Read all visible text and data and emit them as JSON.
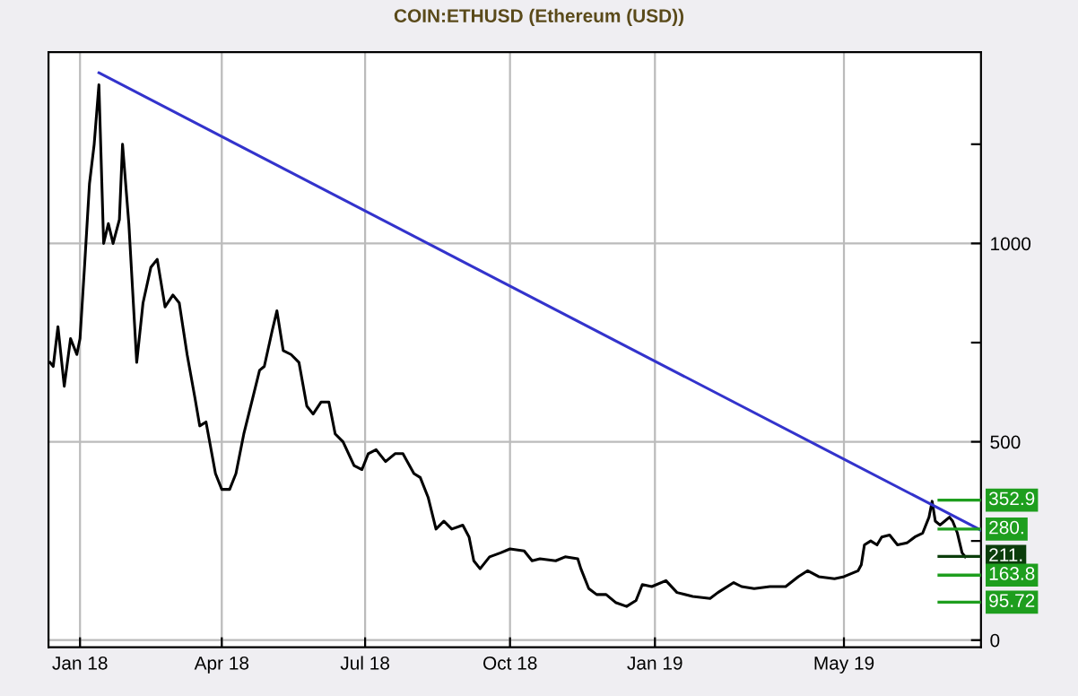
{
  "chart_data": {
    "type": "line",
    "title": "COIN:ETHUSD (Ethereum (USD))",
    "series": [
      {
        "color": "#000000",
        "x": [
          "2017-12-13",
          "2017-12-15",
          "2017-12-18",
          "2017-12-22",
          "2017-12-26",
          "2017-12-30",
          "2018-01-01",
          "2018-01-04",
          "2018-01-07",
          "2018-01-10",
          "2018-01-13",
          "2018-01-16",
          "2018-01-19",
          "2018-01-22",
          "2018-01-26",
          "2018-01-28",
          "2018-02-01",
          "2018-02-06",
          "2018-02-10",
          "2018-02-15",
          "2018-02-19",
          "2018-02-24",
          "2018-03-01",
          "2018-03-05",
          "2018-03-10",
          "2018-03-15",
          "2018-03-18",
          "2018-03-22",
          "2018-03-28",
          "2018-04-01",
          "2018-04-06",
          "2018-04-10",
          "2018-04-15",
          "2018-04-20",
          "2018-04-25",
          "2018-04-28",
          "2018-05-03",
          "2018-05-06",
          "2018-05-10",
          "2018-05-15",
          "2018-05-20",
          "2018-05-25",
          "2018-05-29",
          "2018-06-03",
          "2018-06-08",
          "2018-06-12",
          "2018-06-17",
          "2018-06-24",
          "2018-06-29",
          "2018-07-03",
          "2018-07-08",
          "2018-07-14",
          "2018-07-20",
          "2018-07-25",
          "2018-08-01",
          "2018-08-05",
          "2018-08-10",
          "2018-08-15",
          "2018-08-20",
          "2018-08-25",
          "2018-09-01",
          "2018-09-05",
          "2018-09-08",
          "2018-09-12",
          "2018-09-18",
          "2018-09-25",
          "2018-10-01",
          "2018-10-10",
          "2018-10-15",
          "2018-10-20",
          "2018-10-30",
          "2018-11-05",
          "2018-11-13",
          "2018-11-15",
          "2018-11-20",
          "2018-11-25",
          "2018-12-01",
          "2018-12-07",
          "2018-12-14",
          "2018-12-20",
          "2018-12-24",
          "2018-12-30",
          "2019-01-08",
          "2019-01-15",
          "2019-01-25",
          "2019-02-05",
          "2019-02-10",
          "2019-02-20",
          "2019-02-25",
          "2019-03-05",
          "2019-03-15",
          "2019-03-25",
          "2019-04-02",
          "2019-04-08",
          "2019-04-15",
          "2019-04-25",
          "2019-05-01",
          "2019-05-10",
          "2019-05-12",
          "2019-05-14",
          "2019-05-18",
          "2019-05-22",
          "2019-05-25",
          "2019-05-30",
          "2019-06-04",
          "2019-06-10",
          "2019-06-15",
          "2019-06-20",
          "2019-06-24",
          "2019-06-26",
          "2019-06-28",
          "2019-07-01",
          "2019-07-04",
          "2019-07-07",
          "2019-07-09",
          "2019-07-12",
          "2019-07-15",
          "2019-07-17"
        ],
        "values": [
          700,
          690,
          790,
          640,
          760,
          720,
          760,
          950,
          1150,
          1250,
          1400,
          1000,
          1050,
          1000,
          1060,
          1250,
          1050,
          700,
          850,
          940,
          960,
          840,
          870,
          850,
          720,
          610,
          540,
          550,
          420,
          380,
          380,
          420,
          520,
          600,
          680,
          690,
          780,
          830,
          730,
          720,
          700,
          590,
          570,
          600,
          600,
          520,
          500,
          440,
          430,
          470,
          480,
          450,
          470,
          470,
          420,
          410,
          360,
          280,
          300,
          280,
          290,
          260,
          200,
          180,
          210,
          220,
          230,
          225,
          200,
          205,
          200,
          210,
          205,
          180,
          130,
          115,
          115,
          95,
          85,
          100,
          140,
          135,
          150,
          120,
          110,
          105,
          120,
          145,
          135,
          130,
          135,
          135,
          160,
          175,
          160,
          155,
          160,
          175,
          190,
          240,
          250,
          240,
          260,
          265,
          240,
          245,
          260,
          270,
          310,
          350,
          300,
          290,
          300,
          310,
          300,
          270,
          220,
          210
        ]
      },
      {
        "color": "#3333cc",
        "x": [
          "2018-01-13",
          "2019-07-27"
        ],
        "values": [
          1430,
          277
        ]
      }
    ],
    "xlim": [
      "2017-12-12",
      "2019-07-27"
    ],
    "xticks": [
      {
        "value": "2018-01-01",
        "label": "Jan 18"
      },
      {
        "value": "2018-04-01",
        "label": "Apr 18"
      },
      {
        "value": "2018-07-01",
        "label": "Jul 18"
      },
      {
        "value": "2018-10-01",
        "label": "Oct 18"
      },
      {
        "value": "2019-01-01",
        "label": "Jan 19"
      },
      {
        "value": "2019-05-01",
        "label": "May 19"
      }
    ],
    "ylim": [
      -18,
      1482
    ],
    "yticks": [
      0,
      {
        "value": 250,
        "label": null
      },
      500,
      {
        "value": 750,
        "label": null
      },
      1000,
      {
        "value": 1250,
        "label": null
      }
    ],
    "grid": true,
    "ref_lines": [
      {
        "axis": "y",
        "value": 352.9,
        "label": "352.9",
        "color": "#1e9e1e"
      },
      {
        "axis": "y",
        "value": 280,
        "label": "280.",
        "color": "#1e9e1e"
      },
      {
        "axis": "y",
        "value": 211,
        "label": "211.",
        "color": "#0b3d0b"
      },
      {
        "axis": "y",
        "value": 163.8,
        "label": "163.8",
        "color": "#1e9e1e"
      },
      {
        "axis": "y",
        "value": 95.72,
        "label": "95.72",
        "color": "#1e9e1e"
      }
    ]
  }
}
